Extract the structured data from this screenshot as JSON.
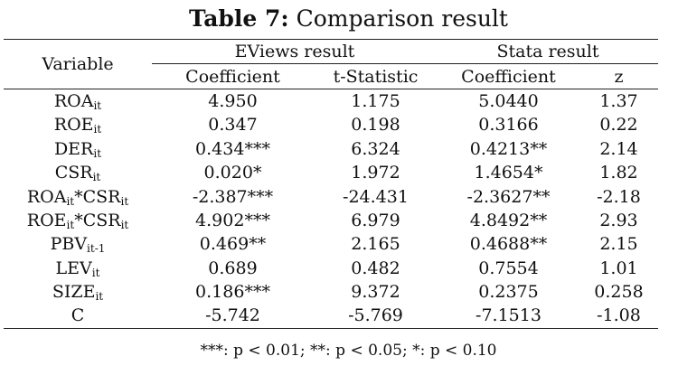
{
  "title": {
    "bold": "Table 7:",
    "rest": " Comparison result"
  },
  "headers": {
    "variable": "Variable",
    "eviews": "EViews result",
    "stata": "Stata result",
    "coefficient": "Coefficient",
    "tstat": "t-Statistic",
    "z": "z"
  },
  "rows": [
    {
      "var": [
        [
          "ROA",
          ""
        ],
        [
          "it",
          "sub"
        ]
      ],
      "ec": "4.950",
      "et": "1.175",
      "sc": "5.0440",
      "sz": "1.37"
    },
    {
      "var": [
        [
          "ROE",
          ""
        ],
        [
          "it",
          "sub"
        ]
      ],
      "ec": "0.347",
      "et": "0.198",
      "sc": "0.3166",
      "sz": "0.22"
    },
    {
      "var": [
        [
          "DER",
          ""
        ],
        [
          "it",
          "sub"
        ]
      ],
      "ec": "0.434***",
      "et": "6.324",
      "sc": "0.4213**",
      "sz": "2.14"
    },
    {
      "var": [
        [
          "CSR",
          ""
        ],
        [
          "it",
          "sub"
        ]
      ],
      "ec": "0.020*",
      "et": "1.972",
      "sc": "1.4654*",
      "sz": "1.82"
    },
    {
      "var": [
        [
          "ROA",
          ""
        ],
        [
          "it",
          "sub"
        ],
        [
          "*CSR",
          ""
        ],
        [
          "it",
          "sub"
        ]
      ],
      "ec": "-2.387***",
      "et": "-24.431",
      "sc": "-2.3627**",
      "sz": "-2.18"
    },
    {
      "var": [
        [
          "ROE",
          ""
        ],
        [
          "it",
          "sub"
        ],
        [
          "*CSR",
          ""
        ],
        [
          "it",
          "sub"
        ]
      ],
      "ec": "4.902***",
      "et": "6.979",
      "sc": "4.8492**",
      "sz": "2.93"
    },
    {
      "var": [
        [
          "PBV",
          ""
        ],
        [
          "it-1",
          "sub"
        ]
      ],
      "ec": "0.469**",
      "et": "2.165",
      "sc": "0.4688**",
      "sz": "2.15"
    },
    {
      "var": [
        [
          "LEV",
          ""
        ],
        [
          "it",
          "sub"
        ]
      ],
      "ec": "0.689",
      "et": "0.482",
      "sc": "0.7554",
      "sz": "1.01"
    },
    {
      "var": [
        [
          "SIZE",
          ""
        ],
        [
          "it",
          "sub"
        ]
      ],
      "ec": "0.186***",
      "et": "9.372",
      "sc": "0.2375",
      "sz": "0.258"
    },
    {
      "var": [
        [
          "C",
          ""
        ]
      ],
      "ec": "-5.742",
      "et": "-5.769",
      "sc": "-7.1513",
      "sz": "-1.08"
    }
  ],
  "footnote": "***: p < 0.01; **: p < 0.05; *: p < 0.10"
}
